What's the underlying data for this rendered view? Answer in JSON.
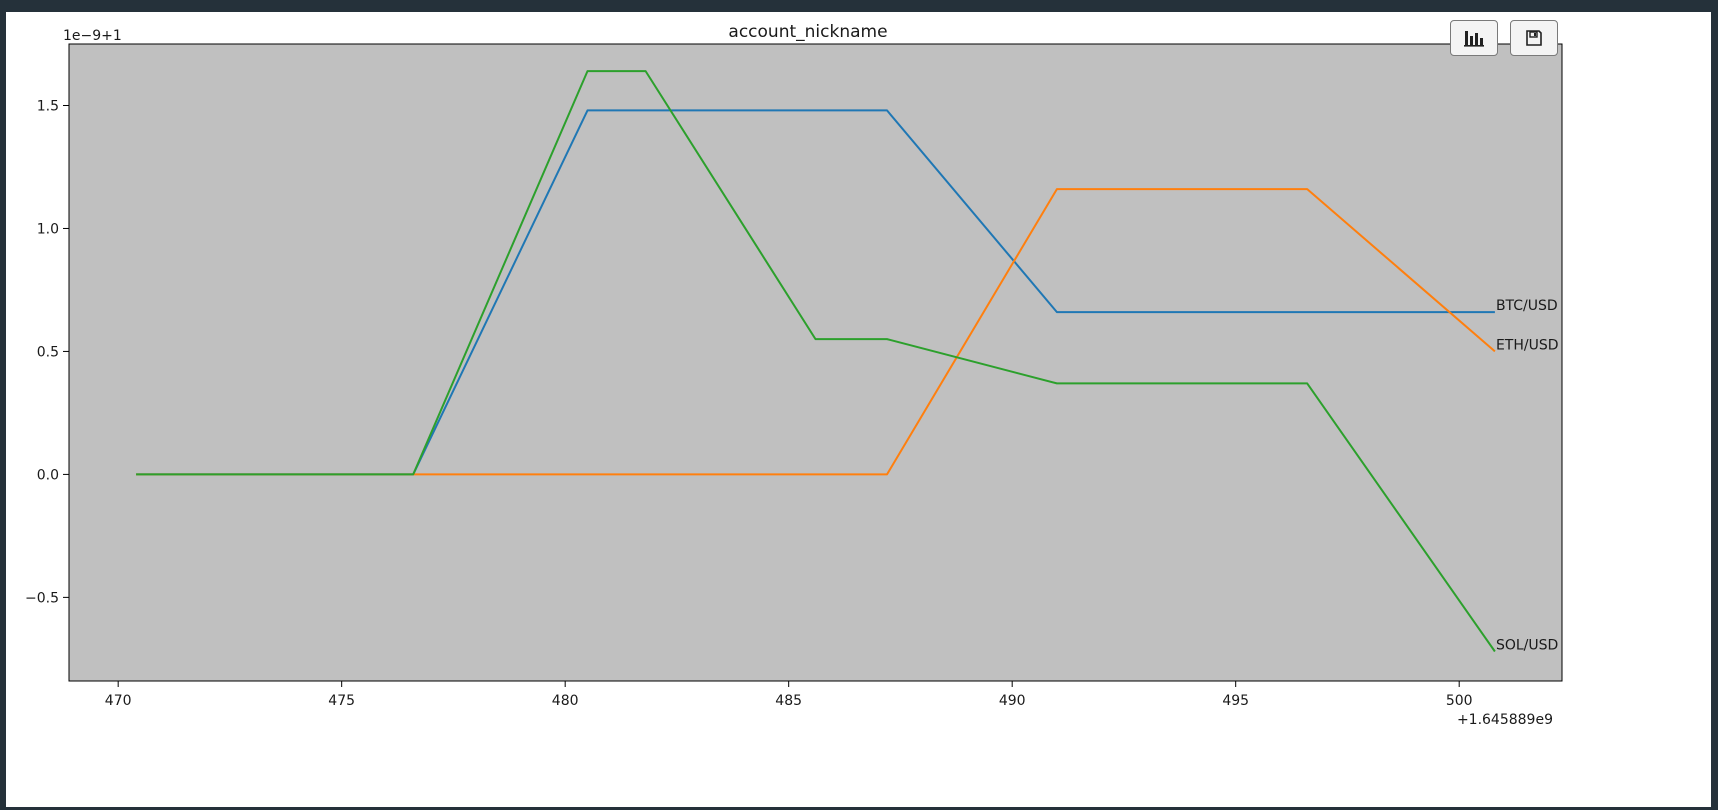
{
  "toolbar": {
    "buttons": [
      {
        "name": "chart-options-button",
        "icon": "bar-chart-icon"
      },
      {
        "name": "save-figure-button",
        "icon": "floppy-disk-icon"
      }
    ]
  },
  "colors": {
    "window_background": "#25313a",
    "figure_background": "#ffffff",
    "plot_background": "#c0c0c0",
    "text": "#1a1a1a"
  },
  "chart_data": {
    "type": "line",
    "title": "account_nickname",
    "xlabel": "",
    "ylabel": "",
    "x_offset_label": "+1.645889e9",
    "y_offset_label": "1e−9+1",
    "xlim": [
      468.9,
      502.3
    ],
    "ylim": [
      -0.84,
      1.75
    ],
    "x_ticks": [
      470,
      475,
      480,
      485,
      490,
      495,
      500
    ],
    "x_tick_labels": [
      "470",
      "475",
      "480",
      "485",
      "490",
      "495",
      "500"
    ],
    "y_ticks": [
      -0.5,
      0.0,
      0.5,
      1.0,
      1.5
    ],
    "y_tick_labels": [
      "−0.5",
      "0.0",
      "0.5",
      "1.0",
      "1.5"
    ],
    "grid": false,
    "legend": "none (series labels drawn at line ends)",
    "series": [
      {
        "name": "BTC/USD",
        "color": "#1f77b4",
        "x": [
          470.4,
          476.6,
          480.5,
          487.2,
          491.0,
          496.6,
          500.8
        ],
        "y": [
          0.0,
          0.0,
          1.48,
          1.48,
          0.66,
          0.66,
          0.66
        ]
      },
      {
        "name": "ETH/USD",
        "color": "#ff7f0e",
        "x": [
          470.4,
          476.6,
          480.5,
          487.2,
          491.0,
          496.6,
          500.8
        ],
        "y": [
          0.0,
          0.0,
          0.0,
          0.0,
          1.16,
          1.16,
          0.5
        ]
      },
      {
        "name": "SOL/USD",
        "color": "#2ca02c",
        "x": [
          470.4,
          476.6,
          480.5,
          481.8,
          485.6,
          487.2,
          491.0,
          496.6,
          500.8
        ],
        "y": [
          0.0,
          0.0,
          1.64,
          1.64,
          0.55,
          0.55,
          0.37,
          0.37,
          -0.72
        ]
      }
    ]
  }
}
